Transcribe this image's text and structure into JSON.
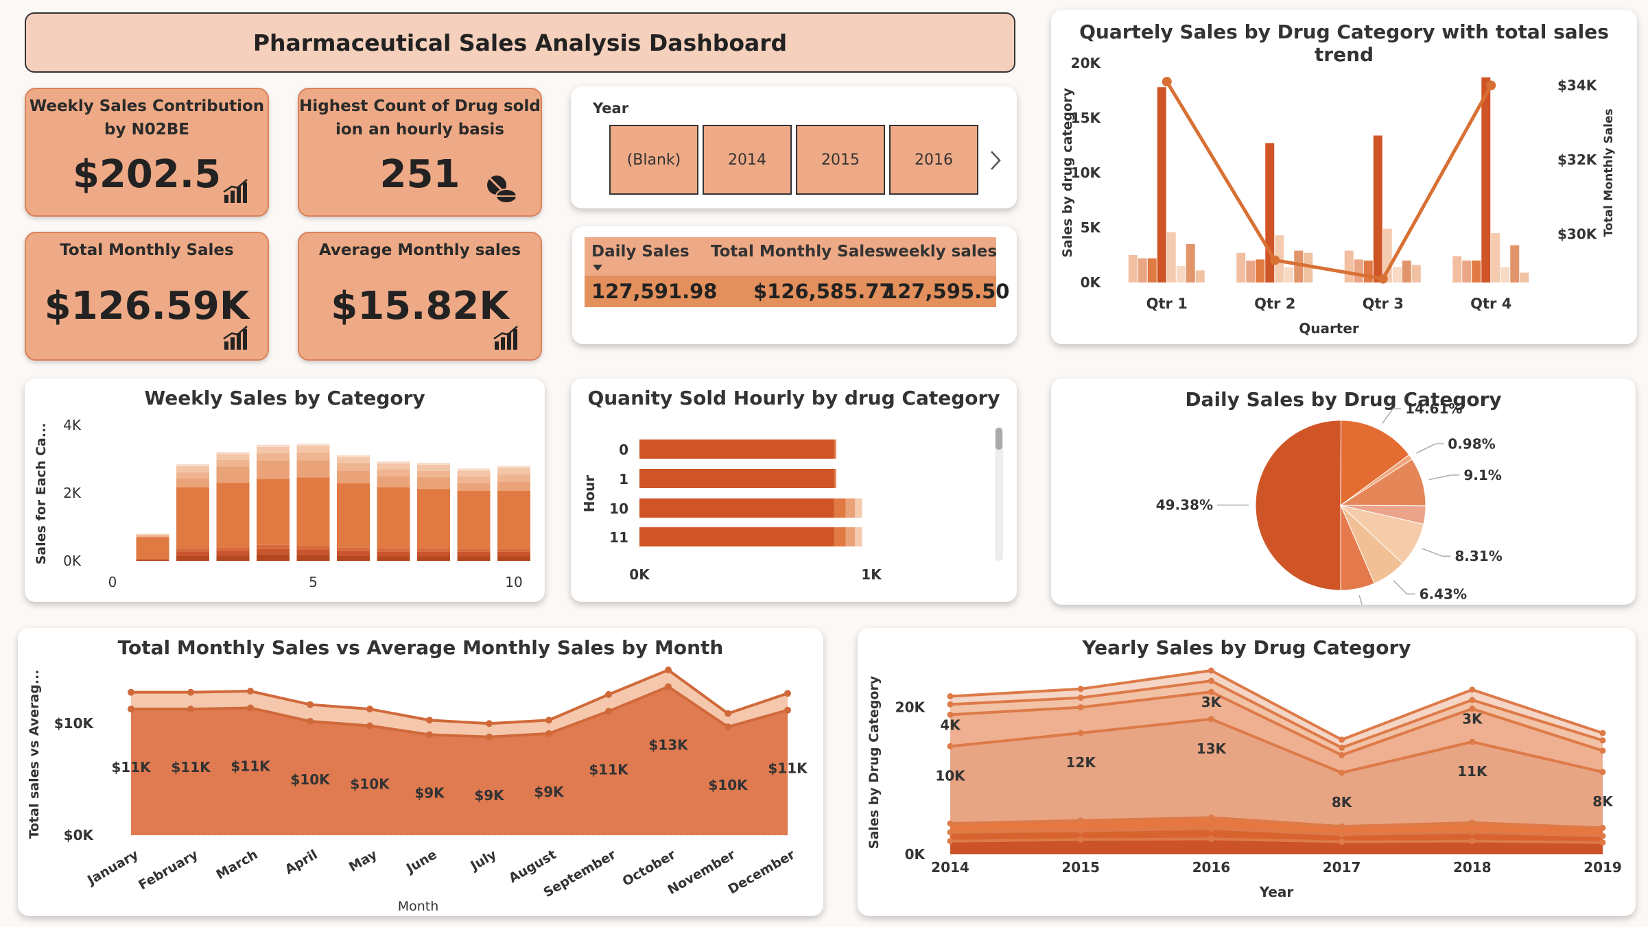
{
  "header": {
    "title": "Pharmaceutical Sales Analysis Dashboard"
  },
  "kpis": {
    "weekly_n02be": {
      "title_line1": "Weekly Sales Contribution",
      "title_line2": "by N02BE",
      "value": "$202.5",
      "icon": "bar-chart-up-icon"
    },
    "hourly_count": {
      "title_line1": "Highest Count of Drug sold",
      "title_line2": "ion an hourly basis",
      "value": "251",
      "icon": "pills-icon"
    },
    "total_monthly": {
      "title": "Total Monthly Sales",
      "value": "$126.59K",
      "icon": "bar-chart-up-icon"
    },
    "avg_monthly": {
      "title": "Average Monthly sales",
      "value": "$15.82K",
      "icon": "bar-chart-up-icon"
    }
  },
  "year_slicer": {
    "label": "Year",
    "options": [
      "(Blank)",
      "2014",
      "2015",
      "2016"
    ],
    "next_icon": "chevron-right-icon"
  },
  "summary_table": {
    "headers": [
      "Daily Sales",
      "Total Monthly Sales",
      "weekly sales"
    ],
    "values": [
      "127,591.98",
      "$126,585.77",
      "127,595.50"
    ],
    "sort_icon": "sort-down-icon"
  },
  "colors": {
    "accent": "#cf5527",
    "orange": "#e07a42",
    "light": "#eeaa86",
    "pale": "#f5cbb0",
    "kpi_bg": "#eeaa86",
    "kpi_border": "#d9825a"
  },
  "chart_data": [
    {
      "id": "quarterly",
      "type": "bar",
      "title": "Quartely Sales by Drug Category with total sales trend",
      "xlabel": "Quarter",
      "ylabel": "Sales by drug category",
      "y2label": "Total Monthly Sales",
      "categories": [
        "Qtr 1",
        "Qtr 2",
        "Qtr 3",
        "Qtr 4"
      ],
      "ylim": [
        0,
        20000
      ],
      "yticks": [
        "0K",
        "5K",
        "10K",
        "15K",
        "20K"
      ],
      "y2lim": [
        28700,
        34600
      ],
      "y2ticks": [
        "$30K",
        "$32K",
        "$34K"
      ],
      "series": [
        {
          "values": [
            2500,
            2700,
            2900,
            2400
          ],
          "color": "#f2bfa0"
        },
        {
          "values": [
            2200,
            2000,
            2100,
            2000
          ],
          "color": "#eaa585"
        },
        {
          "values": [
            2200,
            2100,
            2000,
            2000
          ],
          "color": "#e07a42"
        },
        {
          "values": [
            17800,
            12700,
            13400,
            18700
          ],
          "color": "#cf5527"
        },
        {
          "values": [
            4600,
            4300,
            4900,
            4500
          ],
          "color": "#f5cbb0"
        },
        {
          "values": [
            1500,
            1400,
            1400,
            1400
          ],
          "color": "#f7d9c4"
        },
        {
          "values": [
            3500,
            2900,
            2000,
            3400
          ],
          "color": "#e2956a"
        },
        {
          "values": [
            1100,
            2700,
            1600,
            900
          ],
          "color": "#f0c2a2"
        }
      ],
      "trend": {
        "values": [
          34100,
          29300,
          28800,
          34000
        ],
        "color": "#d87034"
      }
    },
    {
      "id": "weekly",
      "type": "bar",
      "title": "Weekly Sales by Category",
      "ylabel": "Sales for Each Ca...",
      "x": [
        1,
        2,
        3,
        4,
        5,
        6,
        7,
        8,
        9,
        10
      ],
      "xticks": [
        "0",
        "5",
        "10"
      ],
      "ylim": [
        0,
        4000
      ],
      "yticks": [
        "0K",
        "2K",
        "4K"
      ],
      "stacks": [
        {
          "values": [
            20,
            150,
            160,
            190,
            180,
            150,
            140,
            140,
            140,
            140
          ],
          "color": "#b4471f"
        },
        {
          "values": [
            20,
            130,
            140,
            160,
            160,
            140,
            130,
            130,
            130,
            130
          ],
          "color": "#c9552c"
        },
        {
          "values": [
            20,
            90,
            100,
            120,
            120,
            100,
            100,
            100,
            90,
            90
          ],
          "color": "#d8693a"
        },
        {
          "values": [
            640,
            1800,
            1900,
            1950,
            2000,
            1900,
            1800,
            1750,
            1700,
            1700
          ],
          "color": "#e07a42"
        },
        {
          "values": [
            20,
            270,
            480,
            530,
            500,
            370,
            330,
            350,
            230,
            280
          ],
          "color": "#eaa378"
        },
        {
          "values": [
            40,
            180,
            190,
            220,
            230,
            220,
            200,
            180,
            200,
            220
          ],
          "color": "#efb591"
        },
        {
          "values": [
            20,
            170,
            180,
            190,
            200,
            170,
            170,
            180,
            170,
            180
          ],
          "color": "#f3c6a8"
        },
        {
          "values": [
            20,
            60,
            60,
            60,
            60,
            60,
            60,
            60,
            60,
            60
          ],
          "color": "#f8dccb"
        }
      ]
    },
    {
      "id": "hourly",
      "type": "bar",
      "title": "Quanity Sold Hourly by drug Category",
      "ylabel": "Hour",
      "categories": [
        "0",
        "1",
        "10",
        "11"
      ],
      "xlim": [
        0,
        1000
      ],
      "xticks": [
        "0K",
        "1K"
      ],
      "stacks": [
        {
          "values": [
            840,
            840,
            840,
            840
          ],
          "color": "#cf5527"
        },
        {
          "values": [
            8,
            8,
            50,
            50
          ],
          "color": "#e07a42"
        },
        {
          "values": [
            0,
            0,
            40,
            40
          ],
          "color": "#eaa378"
        },
        {
          "values": [
            0,
            0,
            30,
            30
          ],
          "color": "#f5cbb0"
        }
      ]
    },
    {
      "id": "daily_pie",
      "type": "pie",
      "title": "Daily Sales by Drug Category",
      "slices": [
        {
          "label": "49.38%",
          "value": 49.38,
          "color": "#cf5527"
        },
        {
          "label": "14.61%",
          "value": 14.61,
          "color": "#e36c32"
        },
        {
          "label": "0.98%",
          "value": 0.98,
          "color": "#f0a57a"
        },
        {
          "label": "9.1%",
          "value": 9.1,
          "color": "#e48658"
        },
        {
          "label": "",
          "value": 3.4,
          "color": "#eba38a"
        },
        {
          "label": "8.31%",
          "value": 8.31,
          "color": "#f5cba9"
        },
        {
          "label": "6.43%",
          "value": 6.43,
          "color": "#f2c095"
        },
        {
          "label": "6.4%",
          "value": 6.4,
          "color": "#e47a4c"
        }
      ]
    },
    {
      "id": "monthly",
      "type": "area",
      "title": "Total Monthly Sales vs Average Monthly Sales by Month",
      "xlabel": "Month",
      "ylabel": "Total sales vs Averag...",
      "categories": [
        "January",
        "February",
        "March",
        "April",
        "May",
        "June",
        "July",
        "August",
        "September",
        "October",
        "November",
        "December"
      ],
      "ylim": [
        0,
        14500
      ],
      "yticks": [
        "$0K",
        "$10K"
      ],
      "series": [
        {
          "values": [
            12800,
            12800,
            12900,
            11700,
            11300,
            10300,
            10000,
            10300,
            12600,
            14800,
            10900,
            12700
          ],
          "color": "#f5c8ad"
        },
        {
          "values": [
            11300,
            11300,
            11400,
            10200,
            9800,
            9000,
            8800,
            9100,
            11100,
            13300,
            9700,
            11200
          ],
          "color": "#e07a50",
          "labels": [
            "$11K",
            "$11K",
            "$11K",
            "$10K",
            "$10K",
            "$9K",
            "$9K",
            "$9K",
            "$11K",
            "$13K",
            "$10K",
            "$11K"
          ]
        }
      ]
    },
    {
      "id": "yearly",
      "type": "area",
      "title": "Yearly Sales by Drug Category",
      "xlabel": "Year",
      "ylabel": "Sales by Drug Category",
      "categories": [
        "2014",
        "2015",
        "2016",
        "2017",
        "2018",
        "2019"
      ],
      "ylim": [
        0,
        25000
      ],
      "yticks": [
        "0K",
        "20K"
      ],
      "series": [
        {
          "values": [
            21500,
            22500,
            25000,
            15600,
            22400,
            16500
          ],
          "color": "#f5d6c6"
        },
        {
          "values": [
            20400,
            21300,
            23600,
            14500,
            21000,
            15500
          ],
          "color": "#f2c2a6"
        },
        {
          "values": [
            19000,
            20000,
            22100,
            13500,
            19800,
            14100
          ],
          "color": "#eeb090",
          "labels": [
            "4K",
            "",
            "3K",
            "",
            "3K",
            ""
          ]
        },
        {
          "values": [
            14700,
            16500,
            18400,
            11100,
            15300,
            11200
          ],
          "color": "#e8a584",
          "labels": [
            "10K",
            "12K",
            "13K",
            "8K",
            "11K",
            "8K"
          ]
        },
        {
          "values": [
            4200,
            4600,
            5000,
            3800,
            4300,
            3600
          ],
          "color": "#e67740"
        },
        {
          "values": [
            3000,
            3200,
            3500,
            2700,
            3000,
            2500
          ],
          "color": "#d9632f"
        },
        {
          "values": [
            1800,
            2000,
            2100,
            1700,
            1800,
            1600
          ],
          "color": "#cc5228"
        }
      ]
    }
  ]
}
